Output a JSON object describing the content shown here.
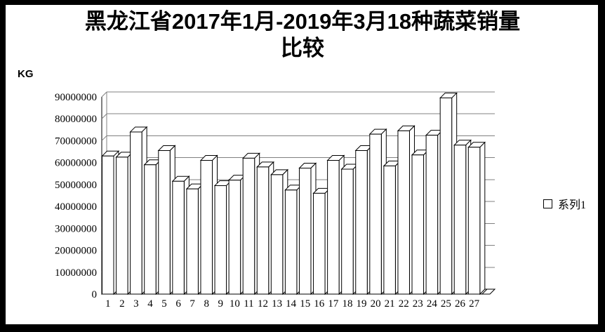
{
  "frame": {
    "border_color": "#000000",
    "background": "#ffffff"
  },
  "title": {
    "line1": "黑龙江省2017年1月-2019年3月18种蔬菜销量",
    "line2": "比较"
  },
  "y_axis": {
    "unit_label": "KG",
    "tick_labels": [
      "0",
      "10000000",
      "20000000",
      "30000000",
      "40000000",
      "50000000",
      "60000000",
      "70000000",
      "80000000",
      "90000000"
    ]
  },
  "legend": {
    "marker": "white-square",
    "series_label": "系列1"
  },
  "chart_data": {
    "type": "bar",
    "style": "3d-column-white-outline",
    "title": "黑龙江省2017年1月-2019年3月18种蔬菜销量比较",
    "ylabel": "KG",
    "xlabel": "",
    "categories": [
      "1",
      "2",
      "3",
      "4",
      "5",
      "6",
      "7",
      "8",
      "9",
      "10",
      "11",
      "12",
      "13",
      "14",
      "15",
      "16",
      "17",
      "18",
      "19",
      "20",
      "21",
      "22",
      "23",
      "24",
      "25",
      "26",
      "27"
    ],
    "series": [
      {
        "name": "系列1",
        "values": [
          63000000,
          62500000,
          74000000,
          59000000,
          65500000,
          51500000,
          48000000,
          61000000,
          49500000,
          52000000,
          62000000,
          58000000,
          54500000,
          47500000,
          57500000,
          46000000,
          61000000,
          57000000,
          65500000,
          73000000,
          58500000,
          74500000,
          63500000,
          72500000,
          89500000,
          68000000,
          67000000
        ]
      }
    ],
    "ylim": [
      0,
      90000000
    ],
    "ytick_interval": 10000000,
    "grid": true,
    "legend_position": "right",
    "colors": {
      "bar_fill": "#ffffff",
      "bar_stroke": "#000000",
      "gridline": "#808080",
      "axis": "#000000",
      "text": "#000000"
    }
  }
}
